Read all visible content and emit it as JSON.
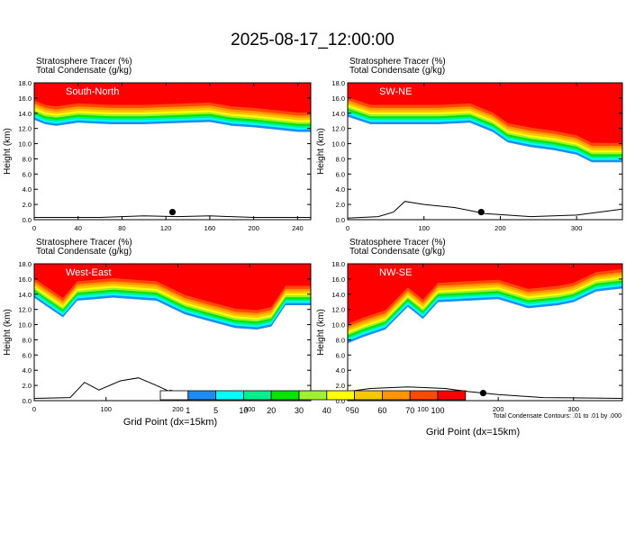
{
  "title": "2025-08-17_12:00:00",
  "panel_header": {
    "line1": "Stratosphere Tracer   (%)",
    "line2": "Total Condensate   (g/kg)"
  },
  "y_axis_label": "Height (km)",
  "x_axis_label": "Grid Point (dx=15km)",
  "contour_note": "Total Condensate Contours: .01 to .01 by .000",
  "colors": [
    "#ffffff",
    "#1e8cf0",
    "#00ffff",
    "#00f090",
    "#00e600",
    "#a0f032",
    "#ffff00",
    "#f5c800",
    "#ff9600",
    "#ff4b00",
    "#ff0000"
  ],
  "colorbar": {
    "labels": [
      "1",
      "5",
      "10",
      "20",
      "30",
      "40",
      "50",
      "60",
      "70",
      "100"
    ]
  },
  "chart_data": [
    {
      "type": "heatmap",
      "name": "South-North",
      "x_ticks": [
        0,
        40,
        80,
        120,
        160,
        200,
        240
      ],
      "xlim": [
        0,
        252
      ],
      "y_ticks": [
        "0.0",
        "2.0",
        "4.0",
        "6.0",
        "8.0",
        "10.0",
        "12.0",
        "14.0",
        "16.0",
        "18.0"
      ],
      "ylim": [
        0,
        18
      ],
      "marker": {
        "x": 126,
        "y": 1.0
      },
      "tracer_base_km": [
        [
          0,
          13.2
        ],
        [
          10,
          12.6
        ],
        [
          20,
          12.4
        ],
        [
          40,
          12.8
        ],
        [
          70,
          12.6
        ],
        [
          100,
          12.6
        ],
        [
          140,
          12.8
        ],
        [
          160,
          12.9
        ],
        [
          180,
          12.4
        ],
        [
          200,
          12.2
        ],
        [
          220,
          11.9
        ],
        [
          240,
          11.6
        ],
        [
          252,
          11.6
        ]
      ],
      "terrain_km": [
        [
          0,
          0.3
        ],
        [
          60,
          0.3
        ],
        [
          80,
          0.4
        ],
        [
          100,
          0.5
        ],
        [
          130,
          0.4
        ],
        [
          160,
          0.5
        ],
        [
          200,
          0.3
        ],
        [
          252,
          0.3
        ]
      ]
    },
    {
      "type": "heatmap",
      "name": "SW-NE",
      "x_ticks": [
        0,
        100,
        200,
        300
      ],
      "xlim": [
        0,
        360
      ],
      "y_ticks": [
        "0.0",
        "2.0",
        "4.0",
        "6.0",
        "8.0",
        "10.0",
        "12.0",
        "14.0",
        "16.0",
        "18.0"
      ],
      "ylim": [
        0,
        18
      ],
      "marker": {
        "x": 175,
        "y": 1.0
      },
      "tracer_base_km": [
        [
          0,
          13.6
        ],
        [
          30,
          12.6
        ],
        [
          80,
          12.6
        ],
        [
          120,
          12.6
        ],
        [
          160,
          12.8
        ],
        [
          190,
          11.6
        ],
        [
          210,
          10.2
        ],
        [
          240,
          9.6
        ],
        [
          270,
          9.2
        ],
        [
          300,
          8.6
        ],
        [
          320,
          7.6
        ],
        [
          360,
          7.6
        ]
      ],
      "terrain_km": [
        [
          0,
          0.2
        ],
        [
          40,
          0.4
        ],
        [
          60,
          1.0
        ],
        [
          75,
          2.4
        ],
        [
          100,
          2.0
        ],
        [
          140,
          1.6
        ],
        [
          180,
          0.8
        ],
        [
          240,
          0.4
        ],
        [
          300,
          0.6
        ],
        [
          360,
          1.4
        ]
      ]
    },
    {
      "type": "heatmap",
      "name": "West-East",
      "x_ticks": [
        0,
        100,
        200,
        300
      ],
      "xlim": [
        0,
        385
      ],
      "y_ticks": [
        "0.0",
        "2.0",
        "4.0",
        "6.0",
        "8.0",
        "10.0",
        "12.0",
        "14.0",
        "16.0",
        "18.0"
      ],
      "ylim": [
        0,
        18
      ],
      "marker": {
        "x": 190,
        "y": 1.0
      },
      "tracer_base_km": [
        [
          0,
          13.6
        ],
        [
          15,
          12.6
        ],
        [
          40,
          11.0
        ],
        [
          60,
          13.2
        ],
        [
          110,
          13.6
        ],
        [
          170,
          13.2
        ],
        [
          210,
          11.4
        ],
        [
          240,
          10.6
        ],
        [
          280,
          9.6
        ],
        [
          310,
          9.4
        ],
        [
          330,
          9.8
        ],
        [
          350,
          12.6
        ],
        [
          385,
          12.6
        ]
      ],
      "terrain_km": [
        [
          0,
          0.3
        ],
        [
          50,
          0.4
        ],
        [
          70,
          2.4
        ],
        [
          90,
          1.4
        ],
        [
          120,
          2.6
        ],
        [
          145,
          3.0
        ],
        [
          170,
          2.0
        ],
        [
          200,
          0.7
        ],
        [
          260,
          0.4
        ],
        [
          320,
          0.4
        ],
        [
          385,
          0.4
        ]
      ]
    },
    {
      "type": "heatmap",
      "name": "NW-SE",
      "x_ticks": [
        0,
        100,
        200,
        300
      ],
      "xlim": [
        0,
        365
      ],
      "y_ticks": [
        "0.0",
        "2.0",
        "4.0",
        "6.0",
        "8.0",
        "10.0",
        "12.0",
        "14.0",
        "16.0",
        "18.0"
      ],
      "ylim": [
        0,
        18
      ],
      "marker": {
        "x": 180,
        "y": 1.0
      },
      "tracer_base_km": [
        [
          0,
          7.6
        ],
        [
          20,
          8.4
        ],
        [
          50,
          9.4
        ],
        [
          80,
          12.4
        ],
        [
          100,
          10.8
        ],
        [
          120,
          13.0
        ],
        [
          160,
          13.2
        ],
        [
          200,
          13.4
        ],
        [
          240,
          12.2
        ],
        [
          280,
          12.6
        ],
        [
          300,
          13.0
        ],
        [
          330,
          14.4
        ],
        [
          365,
          14.8
        ]
      ],
      "terrain_km": [
        [
          0,
          1.2
        ],
        [
          30,
          1.6
        ],
        [
          80,
          1.8
        ],
        [
          130,
          1.6
        ],
        [
          160,
          1.2
        ],
        [
          200,
          0.8
        ],
        [
          260,
          0.4
        ],
        [
          365,
          0.3
        ]
      ]
    }
  ]
}
